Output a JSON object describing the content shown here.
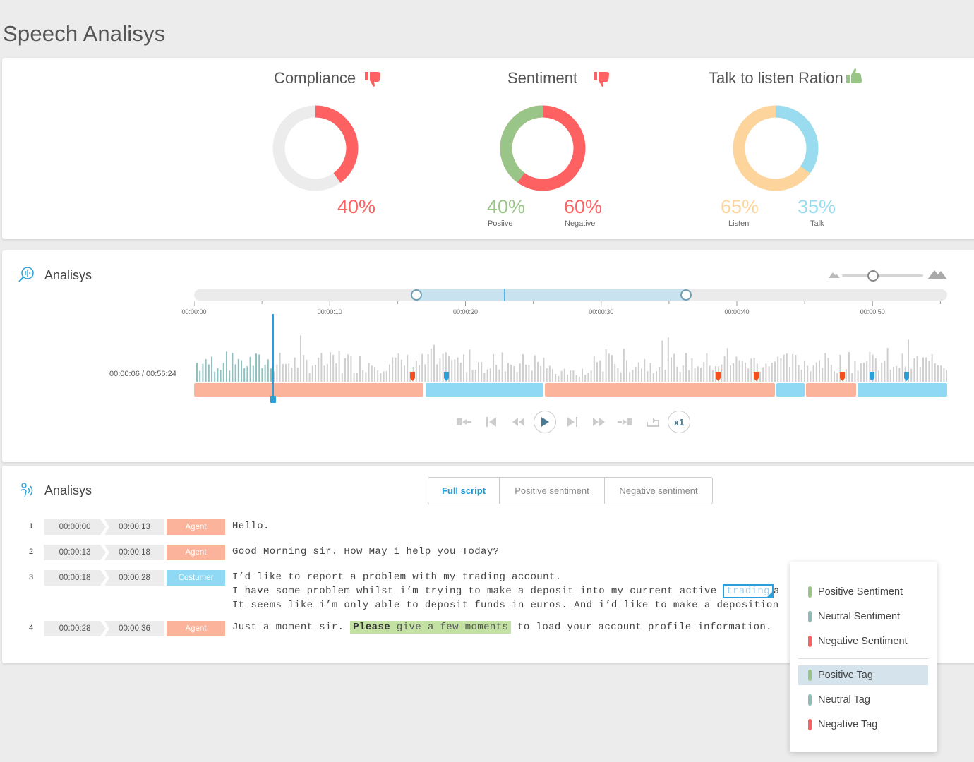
{
  "page": {
    "title": "Speech Analisys"
  },
  "colors": {
    "negative": "#fd6161",
    "positive": "#99c688",
    "listen": "#fdd49b",
    "talk": "#9adcef",
    "track": "#ececec",
    "agent": "#fbb39c",
    "customer": "#8fd9f4",
    "accent": "#1e9ad6"
  },
  "metrics": {
    "compliance": {
      "title": "Compliance",
      "icon": "thumbs-down-icon",
      "value_pct": 40,
      "value_label": "40%"
    },
    "sentiment": {
      "title": "Sentiment",
      "icon": "thumbs-down-icon",
      "positive_pct": 40,
      "negative_pct": 60,
      "positive_label": "40%",
      "positive_sub": "Posiive",
      "negative_label": "60%",
      "negative_sub": "Negative"
    },
    "talk_listen": {
      "title": "Talk to listen Ration",
      "icon": "thumbs-up-icon",
      "listen_pct": 65,
      "talk_pct": 35,
      "listen_label": "65%",
      "listen_sub": "Listen",
      "talk_label": "35%",
      "talk_sub": "Talk"
    }
  },
  "audio": {
    "title": "Analisys",
    "icon": "audio-search-icon",
    "time_readout": "00:00:06 / 00:56:24",
    "ticks": [
      "00:00:00",
      "00:00:10",
      "00:00:20",
      "00:00:30",
      "00:00:40",
      "00:00:50"
    ],
    "zoom_icons": [
      "mountain-small-icon",
      "mountain-large-icon"
    ],
    "speaker_segments": [
      {
        "speaker": "agent",
        "start": 0.0,
        "end": 0.305
      },
      {
        "speaker": "customer",
        "start": 0.307,
        "end": 0.464
      },
      {
        "speaker": "agent",
        "start": 0.466,
        "end": 0.771
      },
      {
        "speaker": "customer",
        "start": 0.773,
        "end": 0.811
      },
      {
        "speaker": "agent",
        "start": 0.813,
        "end": 0.879
      },
      {
        "speaker": "customer",
        "start": 0.881,
        "end": 1.0
      }
    ],
    "controls": [
      "skip-to-start-icon",
      "previous-icon",
      "rewind-icon",
      "play-icon",
      "next-icon",
      "fast-forward-icon",
      "skip-to-end-icon",
      "repeat-icon"
    ],
    "speed": "x1"
  },
  "script": {
    "title": "Analisys",
    "icon": "speaker-voice-icon",
    "tabs": [
      {
        "label": "Full script",
        "active": true
      },
      {
        "label": "Positive sentiment",
        "active": false
      },
      {
        "label": "Negative sentiment",
        "active": false
      }
    ],
    "rows": [
      {
        "num": "1",
        "start": "00:00:00",
        "end": "00:00:13",
        "role": "Agent",
        "lines": [
          "Hello."
        ]
      },
      {
        "num": "2",
        "start": "00:00:13",
        "end": "00:00:18",
        "role": "Agent",
        "lines": [
          "Good Morning sir. How May i help you Today?"
        ]
      },
      {
        "num": "3",
        "start": "00:00:18",
        "end": "00:00:28",
        "role": "Costumer",
        "lines": [
          "I’d like to report a problem with my trading account.",
          "I have some problem whilst i’m trying to make a deposit into my current active",
          "It seems like i’m only able to deposit funds in euros. And i’d like to make a deposition"
        ],
        "tagged_word": "trading",
        "tag_suffix": "a"
      },
      {
        "num": "4",
        "start": "00:00:28",
        "end": "00:00:36",
        "role": "Agent",
        "line_prefix": "Just a moment sir.",
        "highlight_bold": "Please",
        "highlight_rest": "give a few moments",
        "line_suffix": "to load your account profile information."
      }
    ]
  },
  "tag_menu": {
    "items": [
      {
        "label": "Positive Sentiment",
        "color": "#99c688"
      },
      {
        "label": "Neutral Sentiment",
        "color": "#8fbab7"
      },
      {
        "label": "Negative Sentiment",
        "color": "#fd6161"
      },
      {
        "label": "Positive Tag",
        "color": "#99c688",
        "selected": true
      },
      {
        "label": "Neutral Tag",
        "color": "#8fbab7"
      },
      {
        "label": "Negative Tag",
        "color": "#fd6161"
      }
    ]
  }
}
